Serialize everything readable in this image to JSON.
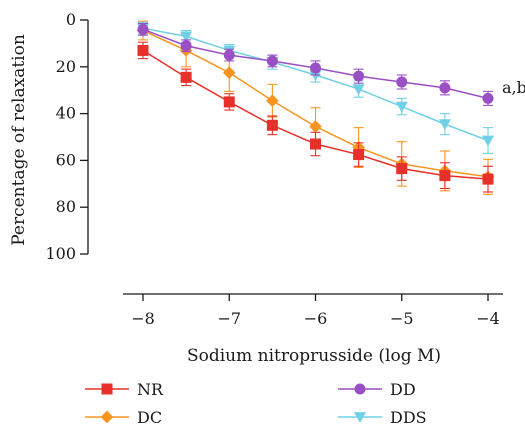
{
  "chart_data": {
    "type": "line",
    "title": "",
    "xlabel": "Sodium nitroprusside (log M)",
    "ylabel": "Percentage of relaxation",
    "x": [
      -8,
      -7.5,
      -7,
      -6.5,
      -6,
      -5.5,
      -5,
      -4.5,
      -4
    ],
    "xticks": [
      -8,
      -7,
      -6,
      -5,
      -4
    ],
    "xtick_labels": [
      "−8",
      "−7",
      "−6",
      "−5",
      "−4"
    ],
    "xlim": [
      -8.25,
      -3.85
    ],
    "ylim": [
      0,
      100
    ],
    "y_inverted": true,
    "yticks": [
      0,
      20,
      40,
      60,
      80,
      100
    ],
    "ytick_labels": [
      "0",
      "20",
      "40",
      "60",
      "80",
      "100"
    ],
    "grid": false,
    "legend_position": "bottom",
    "annotation": {
      "text": "a,b",
      "x": -4,
      "y": 33
    },
    "series": [
      {
        "name": "NR",
        "color": "#e8302a",
        "marker": "square",
        "values": [
          13,
          24.5,
          35,
          45,
          53,
          57.5,
          63.5,
          66.5,
          68
        ],
        "errors": [
          3.5,
          3.5,
          3.5,
          4,
          5,
          5,
          5,
          5.5,
          5.5
        ]
      },
      {
        "name": "DC",
        "color": "#f79520",
        "marker": "diamond",
        "values": [
          4.5,
          13,
          22.5,
          34.5,
          45.5,
          54.5,
          61.5,
          64.5,
          67
        ],
        "errors": [
          4,
          7,
          8,
          7,
          8,
          8.5,
          9.5,
          8.5,
          7.5
        ]
      },
      {
        "name": "DD",
        "color": "#9b4fc4",
        "marker": "circle",
        "values": [
          4,
          11,
          15,
          17.5,
          20.5,
          24,
          26.5,
          29,
          33.5
        ],
        "errors": [
          2.5,
          2.5,
          2.5,
          2.5,
          3,
          3,
          3,
          3,
          3
        ]
      },
      {
        "name": "DDS",
        "color": "#6fd0e6",
        "marker": "triangle-down",
        "values": [
          3.5,
          7,
          13,
          18,
          23.5,
          29.5,
          37,
          44.5,
          51.5
        ],
        "errors": [
          2.5,
          2.5,
          2.5,
          3,
          3,
          3.5,
          3.5,
          4.5,
          5.5
        ]
      }
    ]
  }
}
